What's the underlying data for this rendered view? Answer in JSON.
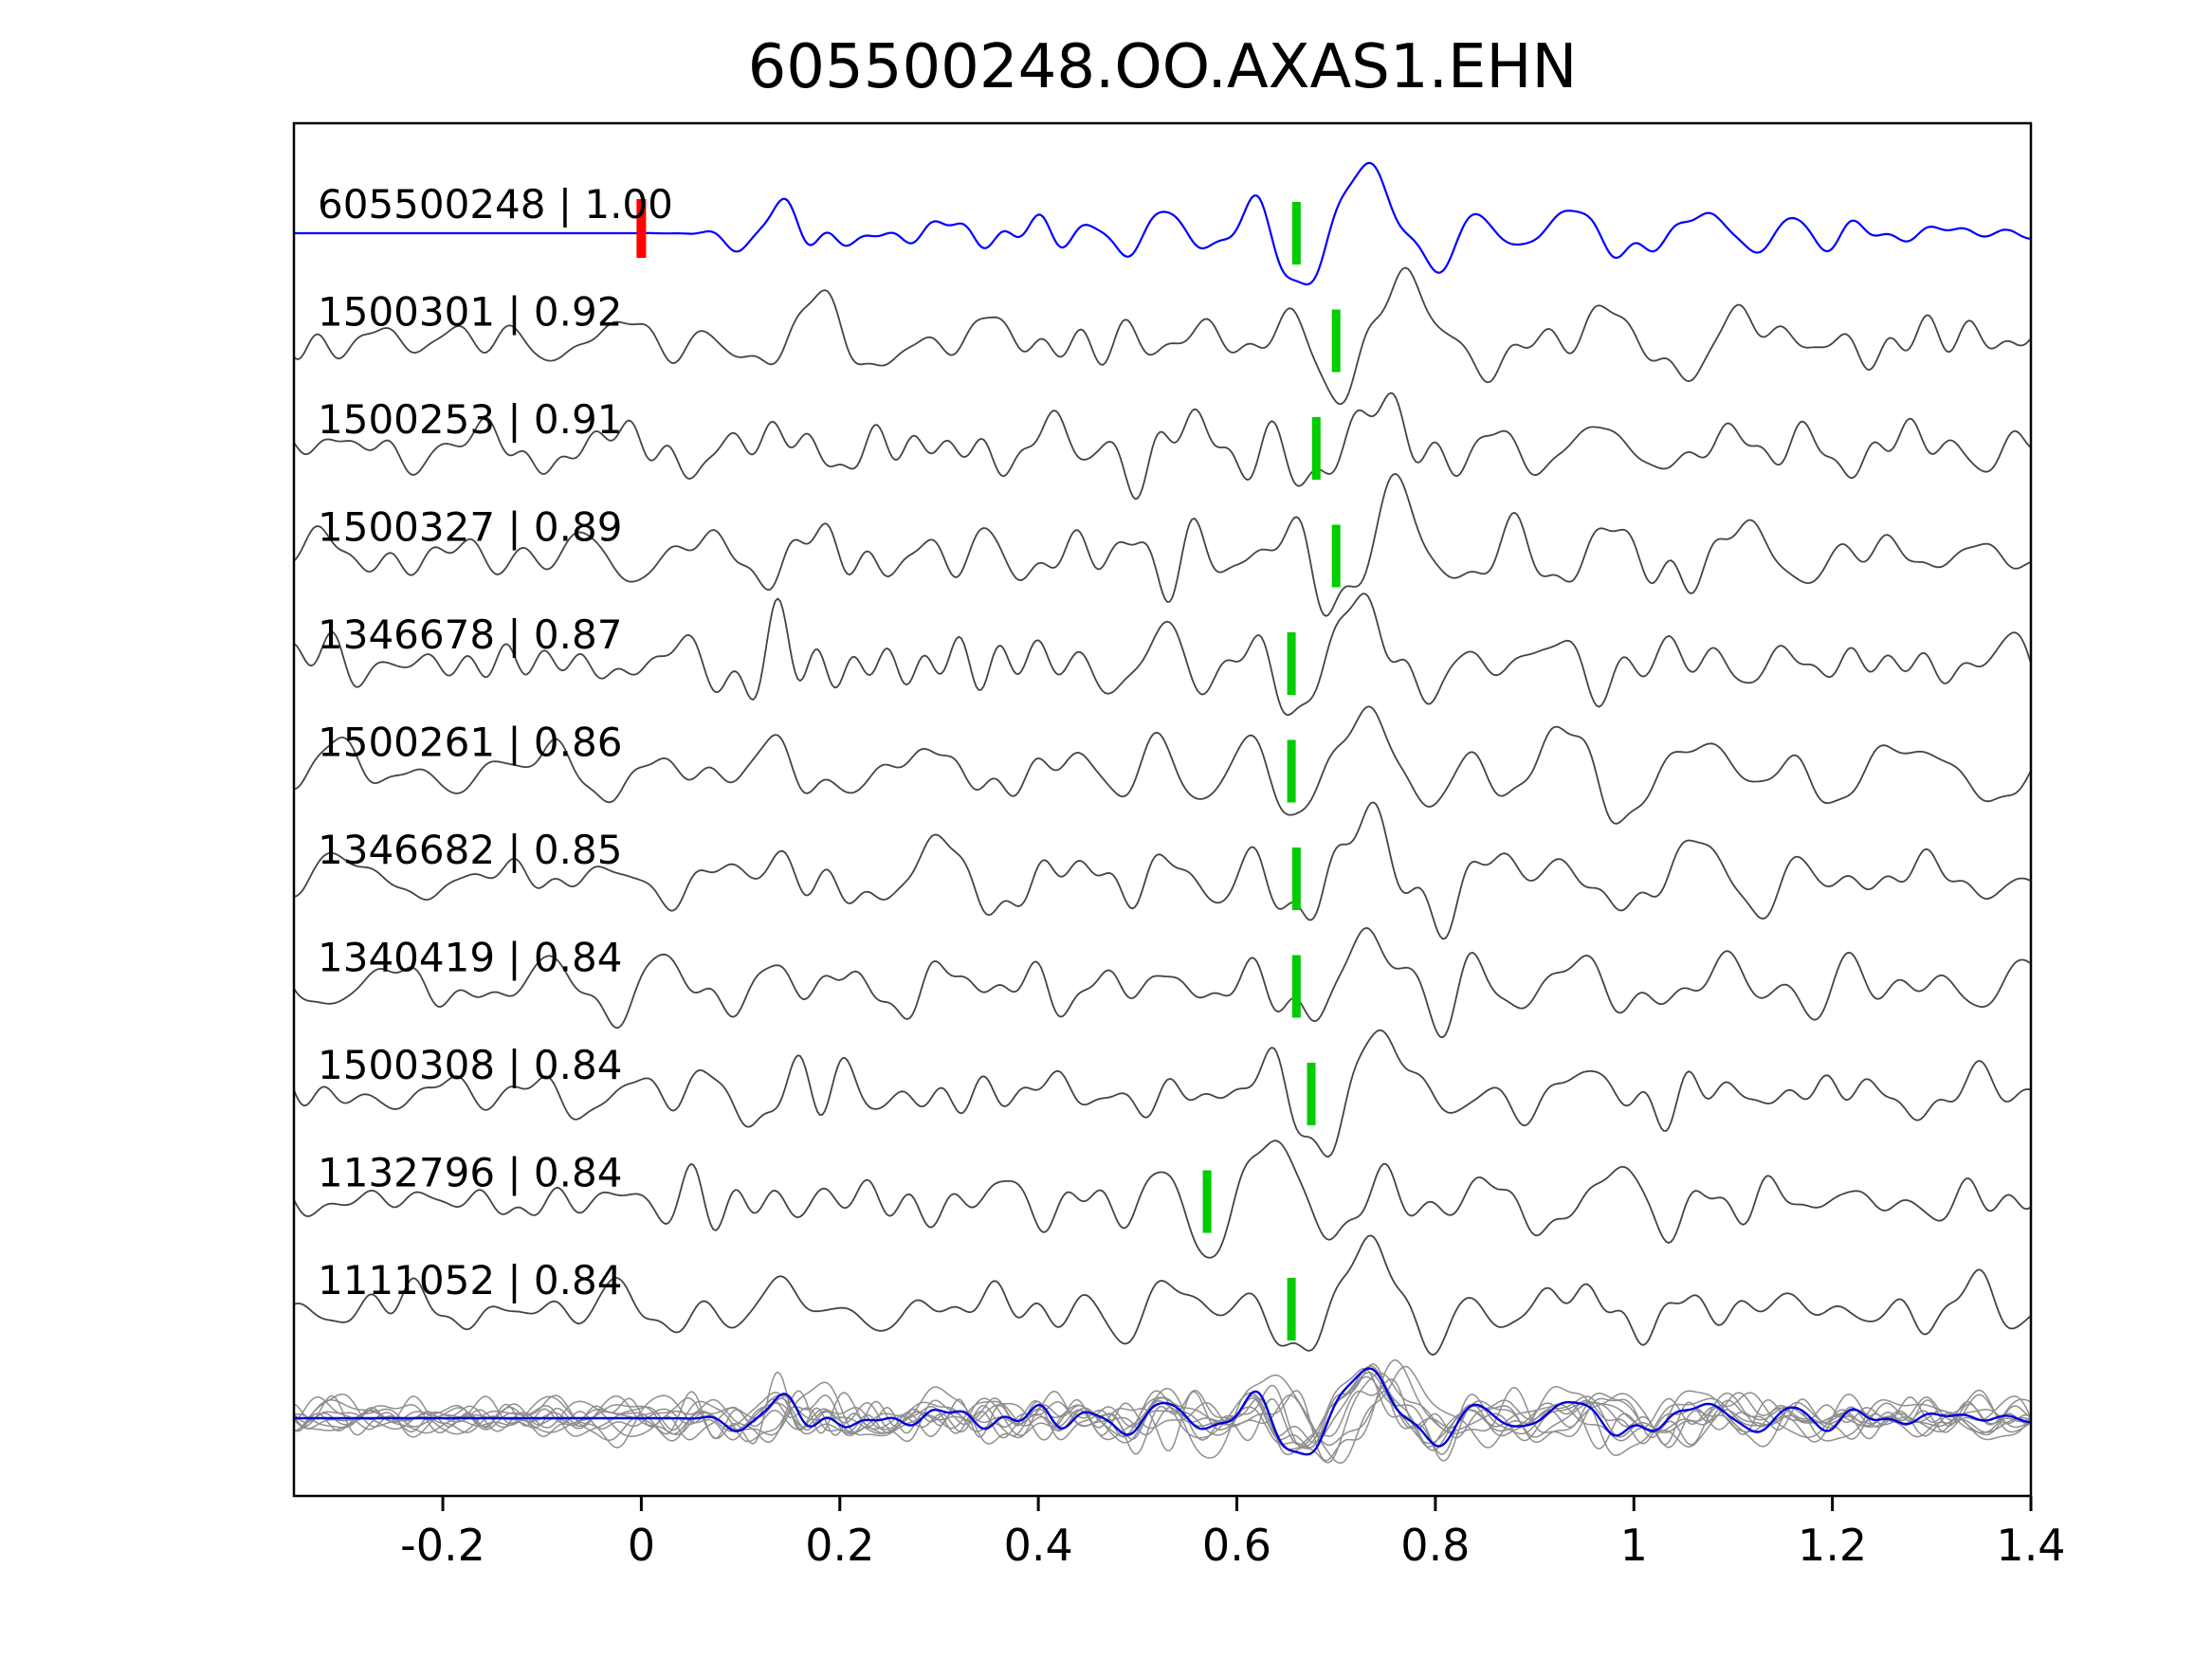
{
  "title": "605500248.OO.AXAS1.EHN",
  "chart_data": {
    "type": "line",
    "title": "605500248.OO.AXAS1.EHN",
    "description": "Template-matching waveform comparison: template seismogram (blue) with origin pick (red) and matched event traces (gray) with cross-correlation picks (green); all traces stacked at the bottom with the template overlaid.",
    "xlabel": "",
    "ylabel": "",
    "xlim": [
      -0.35,
      1.4
    ],
    "x_ticks": [
      -0.2,
      0,
      0.2,
      0.4,
      0.6,
      0.8,
      1,
      1.2,
      1.4
    ],
    "x_tick_labels": [
      "-0.2",
      "0",
      "0.2",
      "0.4",
      "0.6",
      "0.8",
      "1",
      "1.2",
      "1.4"
    ],
    "grid": false,
    "legend": null,
    "colors": {
      "template_trace": "#0000ff",
      "match_trace": "#444444",
      "pick_marker": "#00cc00",
      "origin_marker": "#ff0000",
      "overlay_gray": "#8f8f8f",
      "overlay_blue": "#0000dd",
      "axis": "#000000"
    },
    "traces": [
      {
        "label": "605500248 | 1.00",
        "id": "605500248",
        "correlation": 1.0,
        "role": "template",
        "color": "#0000ff",
        "pick_time": 0.66,
        "origin_time": 0.0
      },
      {
        "label": "1500301 | 0.92",
        "id": "1500301",
        "correlation": 0.92,
        "role": "match",
        "color": "#444444",
        "pick_time": 0.7
      },
      {
        "label": "1500253 | 0.91",
        "id": "1500253",
        "correlation": 0.91,
        "role": "match",
        "color": "#444444",
        "pick_time": 0.68
      },
      {
        "label": "1500327 | 0.89",
        "id": "1500327",
        "correlation": 0.89,
        "role": "match",
        "color": "#444444",
        "pick_time": 0.7
      },
      {
        "label": "1346678 | 0.87",
        "id": "1346678",
        "correlation": 0.87,
        "role": "match",
        "color": "#444444",
        "pick_time": 0.655
      },
      {
        "label": "1500261 | 0.86",
        "id": "1500261",
        "correlation": 0.86,
        "role": "match",
        "color": "#444444",
        "pick_time": 0.655
      },
      {
        "label": "1346682 | 0.85",
        "id": "1346682",
        "correlation": 0.85,
        "role": "match",
        "color": "#444444",
        "pick_time": 0.66
      },
      {
        "label": "1340419 | 0.84",
        "id": "1340419",
        "correlation": 0.84,
        "role": "match",
        "color": "#444444",
        "pick_time": 0.66
      },
      {
        "label": "1500308 | 0.84",
        "id": "1500308",
        "correlation": 0.84,
        "role": "match",
        "color": "#444444",
        "pick_time": 0.675
      },
      {
        "label": "1132796 | 0.84",
        "id": "1132796",
        "correlation": 0.84,
        "role": "match",
        "color": "#444444",
        "pick_time": 0.57
      },
      {
        "label": "1111052 | 0.84",
        "id": "1111052",
        "correlation": 0.84,
        "role": "match",
        "color": "#444444",
        "pick_time": 0.655
      }
    ],
    "overlay_row": {
      "description": "All matched traces superimposed (gray) with template trace overlaid (blue)",
      "position": "bottom"
    }
  }
}
